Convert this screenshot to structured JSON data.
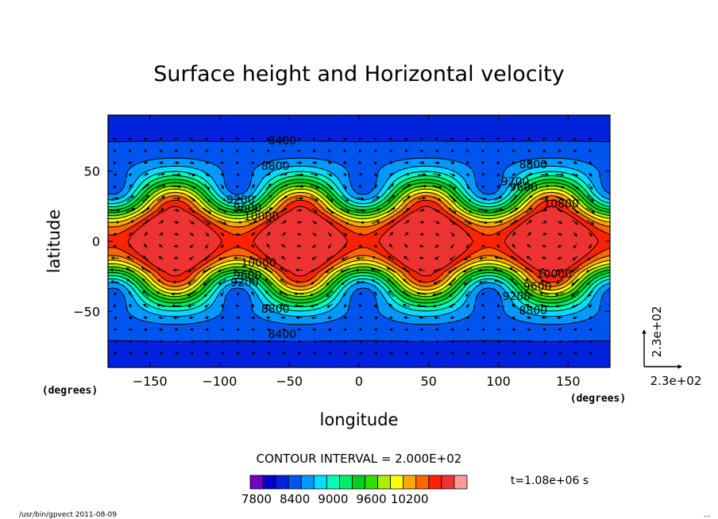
{
  "chart_data": {
    "type": "heatmap",
    "title": "Surface height and Horizontal velocity",
    "xlabel": "longitude",
    "ylabel": "latitude",
    "x_unit": "(degrees)",
    "y_unit": "(degrees)",
    "xlim": [
      -180,
      180
    ],
    "ylim": [
      -90,
      90
    ],
    "x_ticks": [
      -150,
      -100,
      -50,
      0,
      50,
      100,
      150
    ],
    "y_ticks": [
      50,
      0,
      -50
    ],
    "x_tick_labels": [
      "−150",
      "−100",
      "−50",
      "0",
      "50",
      "100",
      "150"
    ],
    "y_tick_labels": [
      "50",
      "0",
      "−50"
    ],
    "contour_interval_label": "CONTOUR INTERVAL = 2.000E+02",
    "contour_interval": 200,
    "levels": [
      7800,
      8000,
      8200,
      8400,
      8600,
      8800,
      9000,
      9200,
      9400,
      9600,
      9800,
      10000,
      10200,
      10400,
      10600
    ],
    "colorbar_tick_labels": [
      "7800",
      "8400",
      "9000",
      "9600",
      "10200"
    ],
    "colorbar_tick_values": [
      7800,
      8400,
      9000,
      9600,
      10200
    ],
    "colors": [
      "#7700bb",
      "#0000cc",
      "#0022dd",
      "#0055ee",
      "#0099ff",
      "#00ddff",
      "#00ffbb",
      "#00ee66",
      "#00cc22",
      "#33dd00",
      "#aaee00",
      "#ffff00",
      "#ffaa00",
      "#ff6600",
      "#ff2200",
      "#ee3333",
      "#ff9999"
    ],
    "contour_labels": [
      {
        "text": "8400",
        "lon": -55,
        "lat": 69
      },
      {
        "text": "8800",
        "lon": -60,
        "lat": 51
      },
      {
        "text": "9200",
        "lon": -85,
        "lat": 27
      },
      {
        "text": "9600",
        "lon": -80,
        "lat": 21
      },
      {
        "text": "10000",
        "lon": -70,
        "lat": 15
      },
      {
        "text": "8800",
        "lon": 125,
        "lat": 52
      },
      {
        "text": "9200",
        "lon": 112,
        "lat": 40
      },
      {
        "text": "9600",
        "lon": 118,
        "lat": 36
      },
      {
        "text": "10800",
        "lon": 145,
        "lat": 24
      },
      {
        "text": "10000",
        "lon": -72,
        "lat": -18
      },
      {
        "text": "9600",
        "lon": -80,
        "lat": -27
      },
      {
        "text": "9200",
        "lon": -82,
        "lat": -32
      },
      {
        "text": "8800",
        "lon": -60,
        "lat": -51
      },
      {
        "text": "8400",
        "lon": -55,
        "lat": -69
      },
      {
        "text": "10000",
        "lon": 140,
        "lat": -26
      },
      {
        "text": "9600",
        "lon": 128,
        "lat": -35
      },
      {
        "text": "9200",
        "lon": 113,
        "lat": -42
      },
      {
        "text": "8800",
        "lon": 125,
        "lat": -52
      }
    ],
    "vector_reference": {
      "x_label": "2.3e+02",
      "y_label": "2.3e+02"
    }
  },
  "time_label": "t=1.08e+06 s",
  "footer_left": "/usr/bin/gpvect  2011-08-09",
  "footer_right": "..."
}
